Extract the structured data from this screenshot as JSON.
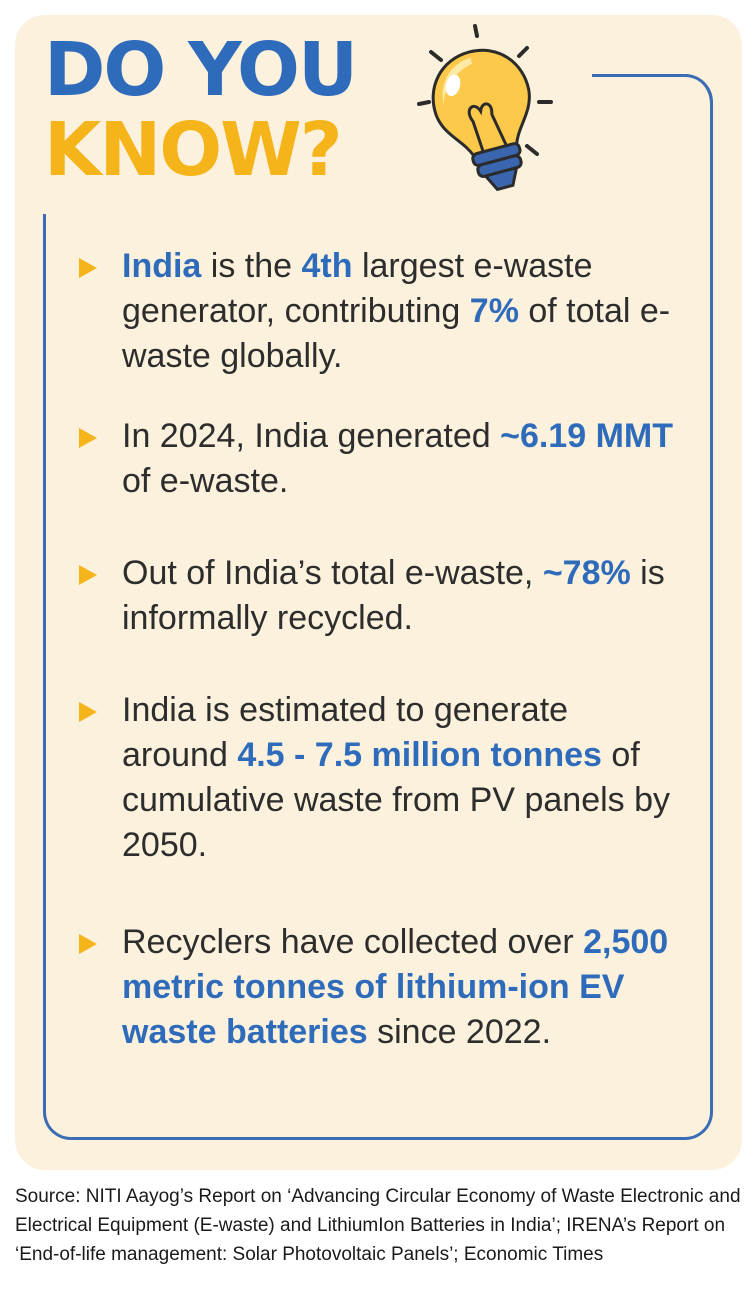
{
  "title": {
    "line1": "DO YOU",
    "line2": "KNOW?"
  },
  "icons": {
    "bulb": "lightbulb-icon",
    "bullet": "triangle-bullet-icon"
  },
  "colors": {
    "blue": "#2f6bbb",
    "yellow": "#f6b41b",
    "card": "#fbf1dc",
    "text": "#2d2d2d"
  },
  "facts": [
    {
      "a": "India",
      "b": " is the ",
      "c": "4th",
      "d": " largest e-waste generator, contributing ",
      "e": "7%",
      "f": " of total e-waste globally."
    },
    {
      "a": "In 2024, India generated ",
      "b": "~6.19 MMT",
      "c": " of e-waste."
    },
    {
      "a": "Out of India’s total e-waste, ",
      "b": "~78%",
      "c": " is informally recycled."
    },
    {
      "a": "India is estimated to generate around ",
      "b": "4.5 - 7.5 million tonnes",
      "c": " of cumulative waste from PV panels by 2050."
    },
    {
      "a": "Recyclers have collected over ",
      "b": "2,500 metric tonnes of lithium-ion EV waste batteries",
      "c": " since 2022."
    }
  ],
  "source": "Source: NITI Aayog’s Report on ‘Advancing Circular Economy of Waste Electronic and Electrical Equipment (E-waste) and LithiumIon Batteries in India’; IRENA’s Report on ‘End-of-life management: Solar Photovoltaic Panels’; Economic Times"
}
